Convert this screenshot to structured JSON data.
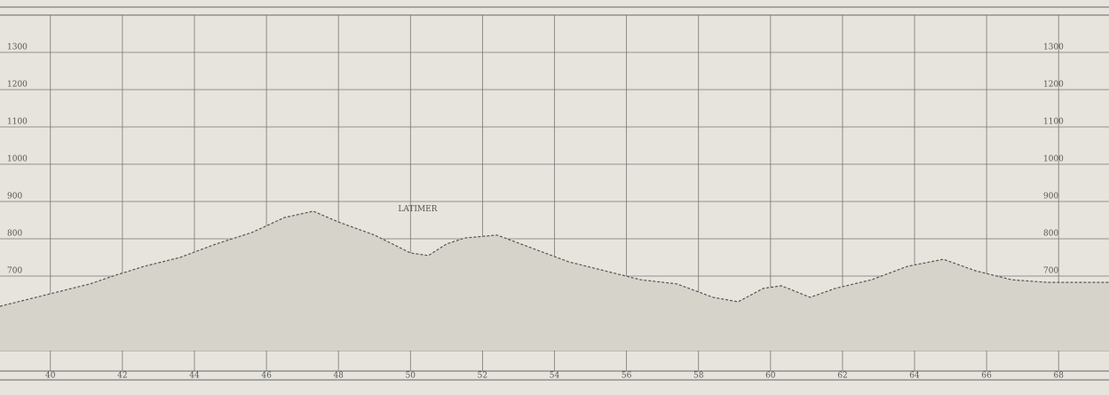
{
  "chart_data": {
    "type": "area",
    "x": [
      38.6,
      39.6,
      40.1,
      41.1,
      41.8,
      42.6,
      43.6,
      44.6,
      45.6,
      46.5,
      47.3,
      48.0,
      49.0,
      50.0,
      50.5,
      51.0,
      51.5,
      52.4,
      53.4,
      54.4,
      55.4,
      56.4,
      57.4,
      58.4,
      59.1,
      59.8,
      60.3,
      61.1,
      61.8,
      62.8,
      63.8,
      64.8,
      65.7,
      66.7,
      67.7,
      69.4
    ],
    "values": [
      619,
      643,
      655,
      679,
      702,
      726,
      750,
      786,
      817,
      857,
      874,
      845,
      810,
      762,
      755,
      786,
      802,
      810,
      774,
      738,
      714,
      690,
      679,
      643,
      631,
      667,
      674,
      643,
      667,
      690,
      726,
      745,
      714,
      690,
      683,
      683
    ],
    "color": "#555555",
    "xlim": [
      38.6,
      69.4
    ],
    "xticks": [
      40,
      42,
      44,
      46,
      48,
      50,
      52,
      54,
      56,
      58,
      60,
      62,
      64,
      66,
      68
    ],
    "ylim": [
      500,
      1400
    ],
    "yticks": [
      500,
      600,
      700,
      800,
      900,
      1000,
      1100,
      1200,
      1300
    ],
    "grid": true,
    "annotations": [
      {
        "text": "LATIMER",
        "x": 50.2,
        "y": 880
      }
    ]
  }
}
